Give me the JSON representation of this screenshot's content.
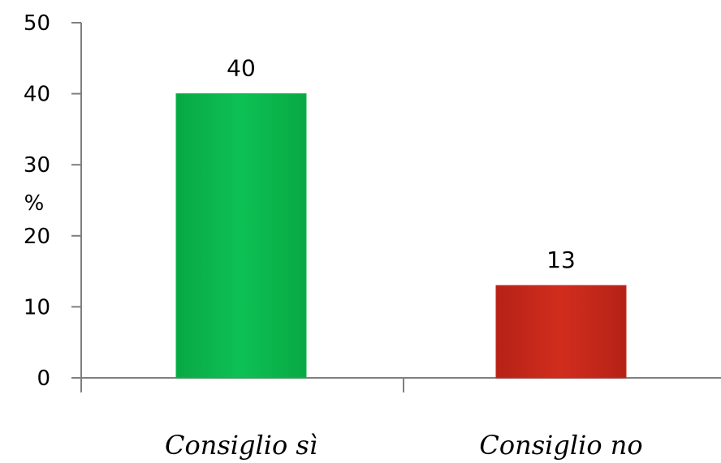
{
  "chart_data": {
    "type": "bar",
    "categories": [
      "Consiglio sì",
      "Consiglio no"
    ],
    "values": [
      40,
      13
    ],
    "data_labels": [
      "40",
      "13"
    ],
    "ylabel": "%",
    "ylim": [
      0,
      50
    ],
    "yticks": [
      "0",
      "10",
      "20",
      "30",
      "40",
      "50"
    ],
    "grid": false,
    "legend": "none",
    "colors": [
      "#0ab84d",
      "#c8281a"
    ]
  }
}
